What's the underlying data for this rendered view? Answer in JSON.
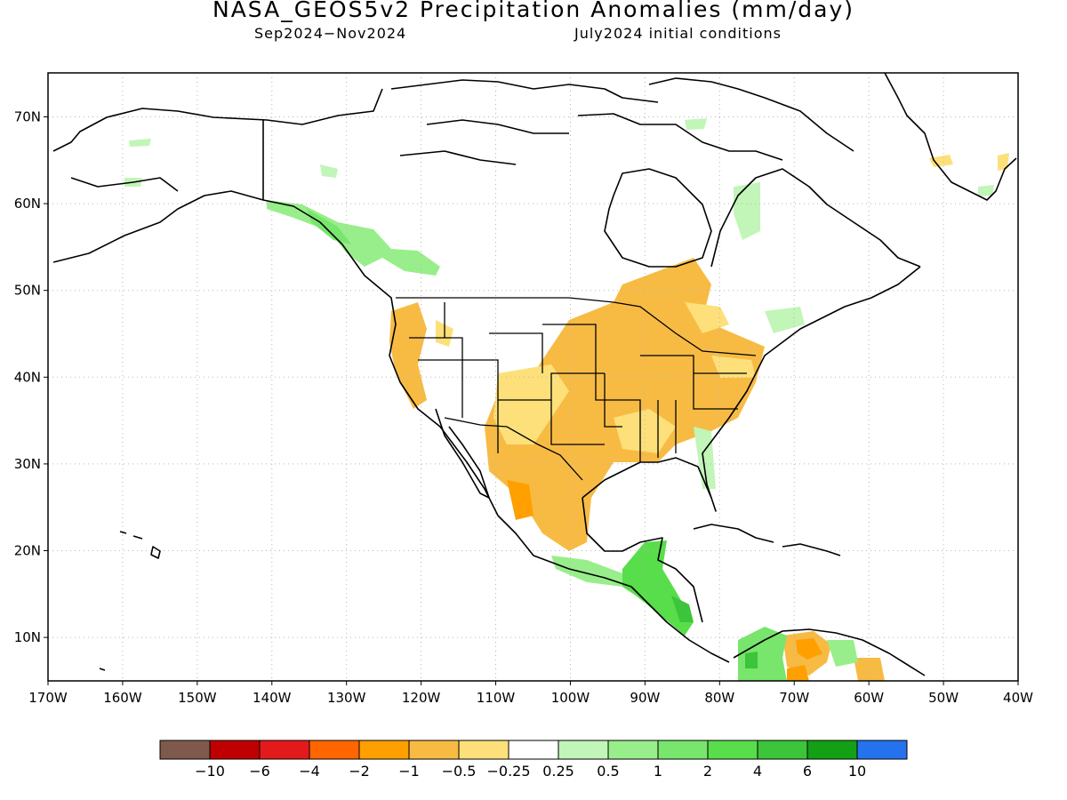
{
  "title": "NASA_GEOS5v2 Precipitation Anomalies (mm/day)",
  "subtitle_left": "Sep2024−Nov2024",
  "subtitle_right": "July2024 initial conditions",
  "lon_labels": [
    "170W",
    "160W",
    "150W",
    "140W",
    "130W",
    "120W",
    "110W",
    "100W",
    "90W",
    "80W",
    "70W",
    "60W",
    "50W",
    "40W"
  ],
  "lat_labels": [
    "70N",
    "60N",
    "50N",
    "40N",
    "30N",
    "20N",
    "10N"
  ],
  "colorbar": {
    "colors": [
      "#7f5a4c",
      "#c00000",
      "#e31a1c",
      "#ff6600",
      "#ff9f00",
      "#f7bb44",
      "#fde07a",
      "#ffffff",
      "#c2f5b8",
      "#98ee8a",
      "#78e56c",
      "#58dd4b",
      "#3cc43a",
      "#14a014",
      "#2572ef"
    ],
    "labels": [
      "−10",
      "−6",
      "−4",
      "−2",
      "−1",
      "−0.5",
      "−0.25",
      "0.25",
      "0.5",
      "1",
      "2",
      "4",
      "6",
      "10"
    ]
  }
}
